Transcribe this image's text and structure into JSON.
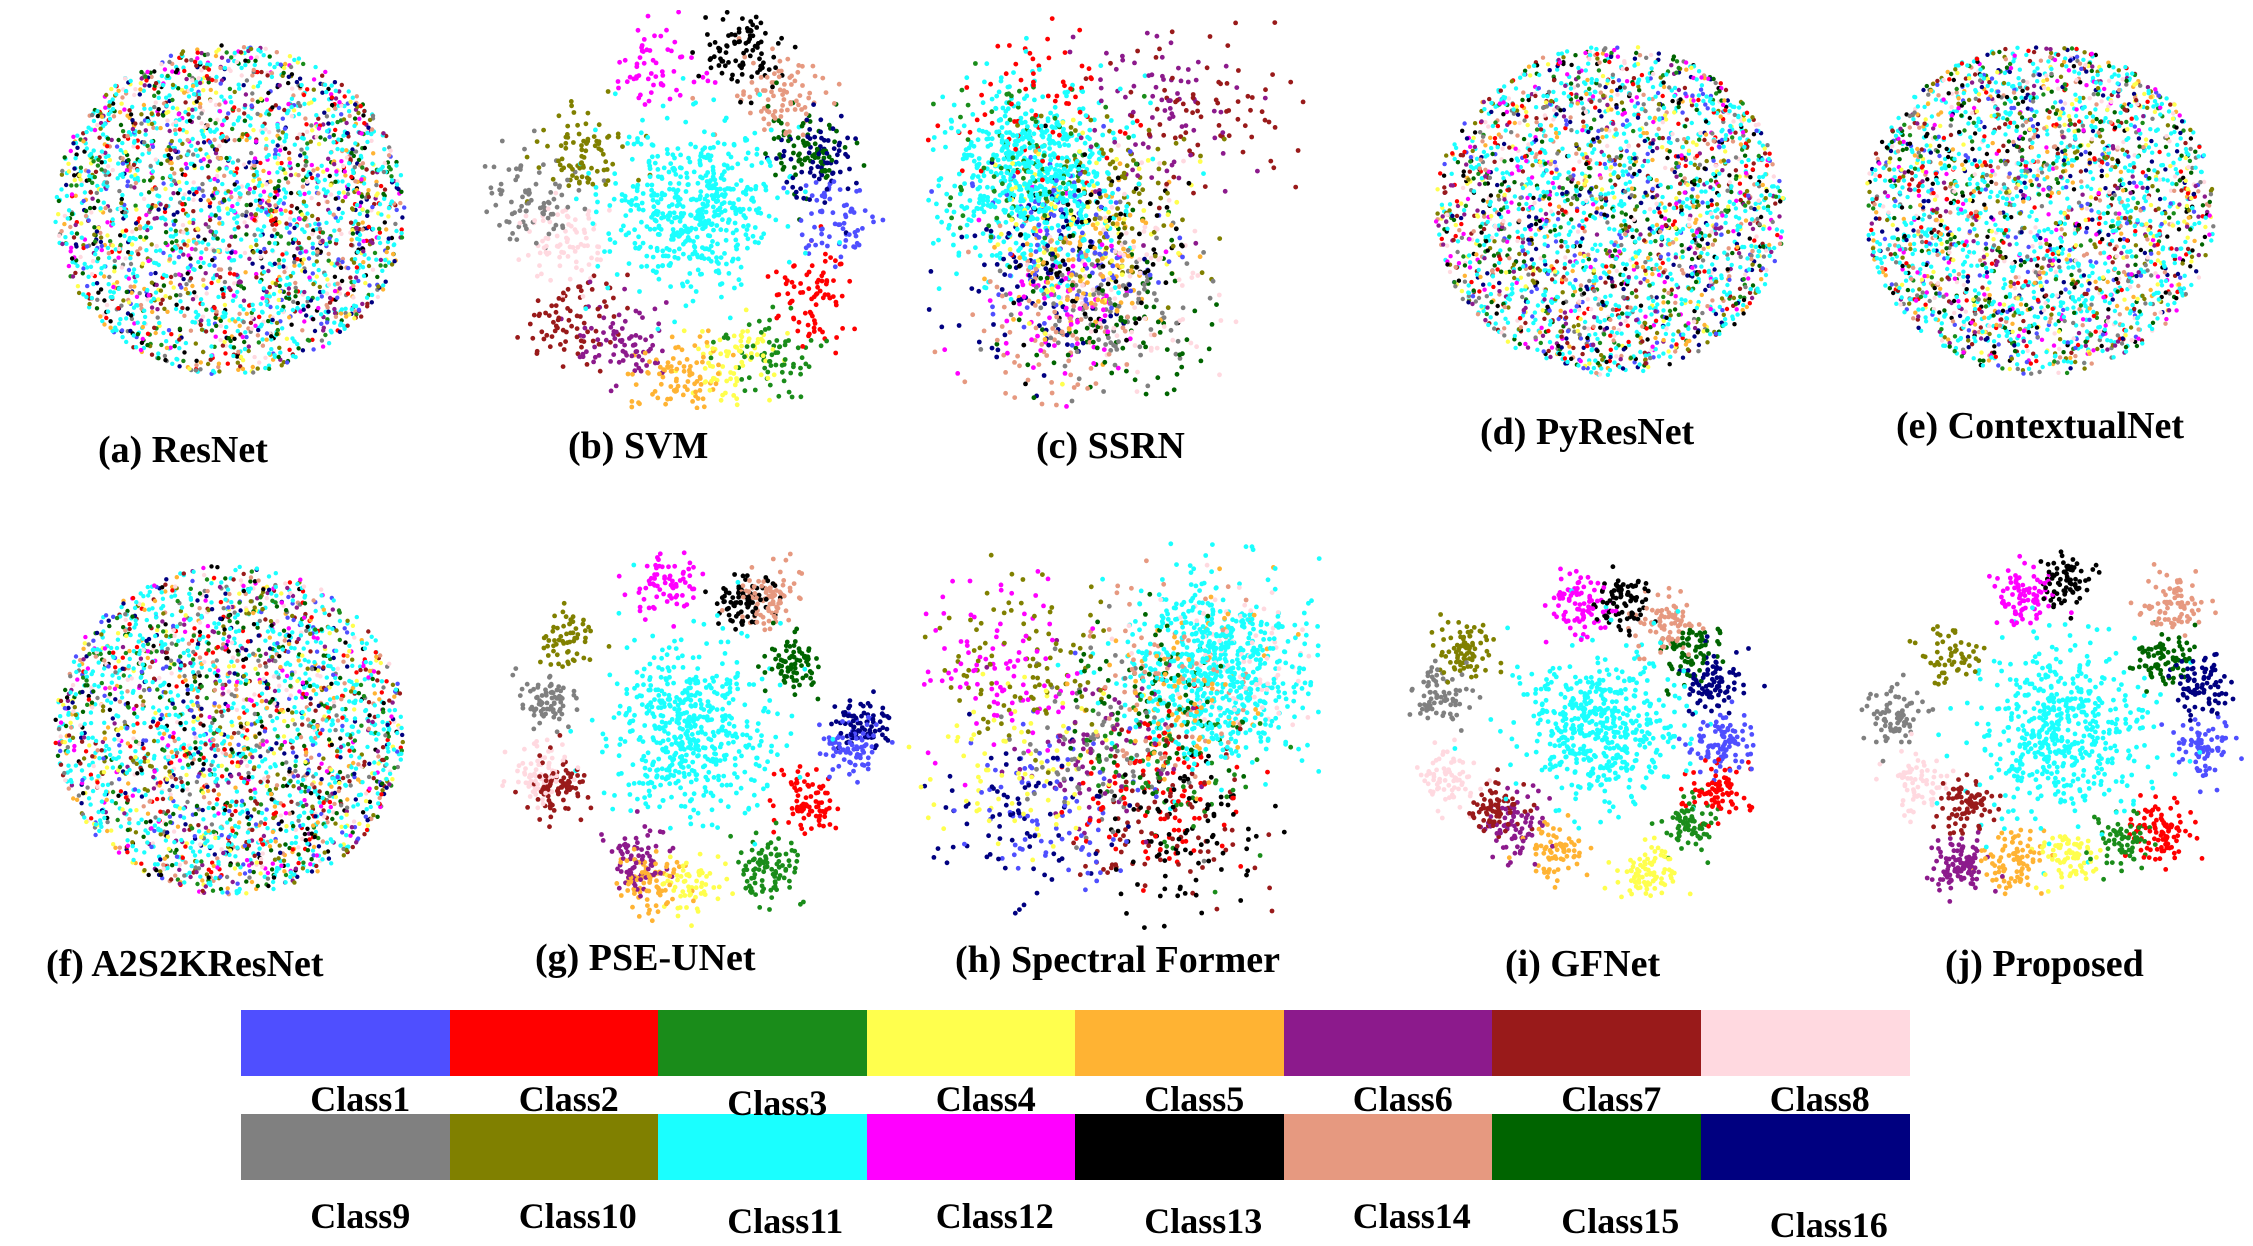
{
  "chart_data": {
    "type": "scatter",
    "description_note": "",
    "classes": [
      {
        "name": "Class1",
        "color": "#4f4fff"
      },
      {
        "name": "Class2",
        "color": "#ff0000"
      },
      {
        "name": "Class3",
        "color": "#1a8c1a"
      },
      {
        "name": "Class4",
        "color": "#ffff4d"
      },
      {
        "name": "Class5",
        "color": "#ffb333"
      },
      {
        "name": "Class6",
        "color": "#8c1a8c"
      },
      {
        "name": "Class7",
        "color": "#991a1a"
      },
      {
        "name": "Class8",
        "color": "#ffd9e0"
      },
      {
        "name": "Class9",
        "color": "#808080"
      },
      {
        "name": "Class10",
        "color": "#808000"
      },
      {
        "name": "Class11",
        "color": "#1affff"
      },
      {
        "name": "Class12",
        "color": "#ff00ff"
      },
      {
        "name": "Class13",
        "color": "#000000"
      },
      {
        "name": "Class14",
        "color": "#e69980"
      },
      {
        "name": "Class15",
        "color": "#006400"
      },
      {
        "name": "Class16",
        "color": "#000080"
      }
    ],
    "panels": [
      {
        "id": "a",
        "caption": "(a) ResNet",
        "mode": "mixed",
        "seed": 11
      },
      {
        "id": "b",
        "caption": "(b) SVM",
        "mode": "clustered",
        "seed": 23
      },
      {
        "id": "c",
        "caption": "(c) SSRN",
        "mode": "semi",
        "seed": 37
      },
      {
        "id": "d",
        "caption": "(d) PyResNet",
        "mode": "mixed",
        "seed": 41
      },
      {
        "id": "e",
        "caption": "(e) ContextualNet",
        "mode": "mixed",
        "seed": 53
      },
      {
        "id": "f",
        "caption": "(f) A2S2KResNet",
        "mode": "mixed",
        "seed": 67
      },
      {
        "id": "g",
        "caption": "(g) PSE-UNet",
        "mode": "separated",
        "seed": 71
      },
      {
        "id": "h",
        "caption": "(h) Spectral Former",
        "mode": "semi",
        "seed": 83
      },
      {
        "id": "i",
        "caption": "(i) GFNet",
        "mode": "separated",
        "seed": 97
      },
      {
        "id": "j",
        "caption": "(j) Proposed",
        "mode": "separated",
        "seed": 101
      }
    ]
  }
}
